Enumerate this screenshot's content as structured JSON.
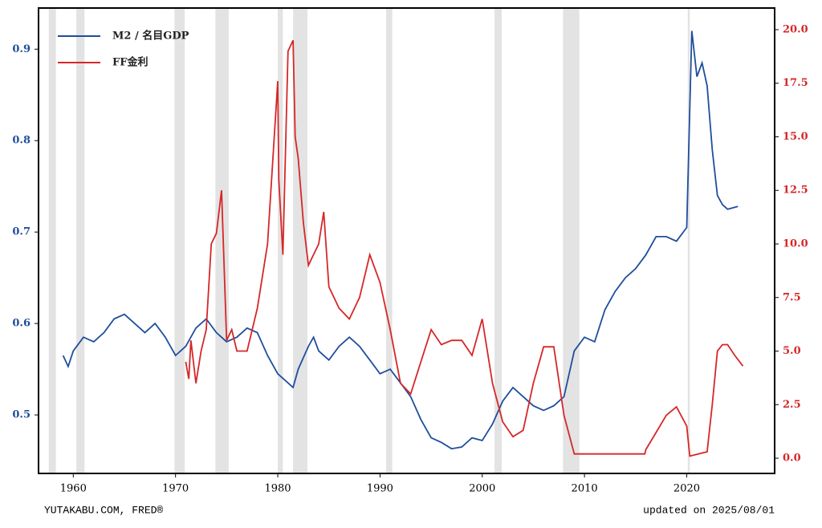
{
  "chart_data": {
    "type": "line",
    "series": [
      {
        "name": "M2 / 名目GDP",
        "color": "#1f4e9c",
        "axis": "y",
        "x": [
          1959,
          1959.5,
          1960,
          1961,
          1962,
          1963,
          1964,
          1965,
          1966,
          1967,
          1968,
          1969,
          1970,
          1971,
          1972,
          1973,
          1974,
          1975,
          1976,
          1977,
          1978,
          1979,
          1980,
          1981,
          1981.5,
          1982,
          1983,
          1983.5,
          1984,
          1985,
          1986,
          1987,
          1988,
          1989,
          1990,
          1991,
          1992,
          1993,
          1994,
          1995,
          1996,
          1997,
          1998,
          1999,
          2000,
          2001,
          2002,
          2003,
          2004,
          2005,
          2006,
          2007,
          2008,
          2009,
          2010,
          2011,
          2012,
          2013,
          2014,
          2015,
          2016,
          2017,
          2018,
          2019,
          2020,
          2020.5,
          2021,
          2021.5,
          2022,
          2022.5,
          2023,
          2023.5,
          2024,
          2025
        ],
        "values": [
          0.565,
          0.553,
          0.57,
          0.585,
          0.58,
          0.59,
          0.605,
          0.61,
          0.6,
          0.59,
          0.6,
          0.585,
          0.565,
          0.575,
          0.595,
          0.605,
          0.59,
          0.58,
          0.585,
          0.595,
          0.59,
          0.565,
          0.545,
          0.535,
          0.53,
          0.55,
          0.575,
          0.585,
          0.57,
          0.56,
          0.575,
          0.585,
          0.575,
          0.56,
          0.545,
          0.55,
          0.535,
          0.52,
          0.495,
          0.475,
          0.47,
          0.463,
          0.465,
          0.475,
          0.472,
          0.49,
          0.515,
          0.53,
          0.52,
          0.51,
          0.505,
          0.51,
          0.52,
          0.57,
          0.585,
          0.58,
          0.615,
          0.635,
          0.65,
          0.66,
          0.675,
          0.695,
          0.695,
          0.69,
          0.705,
          0.92,
          0.87,
          0.885,
          0.86,
          0.79,
          0.74,
          0.73,
          0.725,
          0.728
        ]
      },
      {
        "name": "FF金利",
        "color": "#d62728",
        "axis": "y2",
        "x": [
          1971,
          1971.3,
          1971.5,
          1972,
          1972.5,
          1973,
          1973.5,
          1974,
          1974.5,
          1975,
          1975.5,
          1976,
          1977,
          1978,
          1979,
          1980,
          1980.1,
          1980.5,
          1981,
          1981.5,
          1981.7,
          1982,
          1982.5,
          1983,
          1984,
          1984.5,
          1985,
          1986,
          1987,
          1988,
          1989,
          1990,
          1991,
          1992,
          1993,
          1994,
          1995,
          1996,
          1997,
          1998,
          1999,
          2000,
          2001,
          2002,
          2003,
          2004,
          2005,
          2006,
          2007,
          2008,
          2009,
          2015.9,
          2016,
          2017,
          2018,
          2019,
          2020,
          2020.3,
          2022,
          2022.5,
          2023,
          2023.5,
          2024,
          2024.7,
          2025.5
        ],
        "values": [
          4.5,
          3.7,
          5.5,
          3.5,
          5,
          6,
          10,
          10.5,
          12.5,
          5.5,
          6,
          5,
          5,
          7,
          10,
          17.6,
          13,
          9.5,
          19,
          19.5,
          15,
          14,
          11,
          9,
          10,
          11.5,
          8,
          7,
          6.5,
          7.5,
          9.5,
          8.2,
          6,
          3.5,
          3,
          4.5,
          6,
          5.3,
          5.5,
          5.5,
          4.8,
          6.5,
          3.5,
          1.7,
          1.0,
          1.3,
          3.5,
          5.2,
          5.2,
          2,
          0.2,
          0.2,
          0.4,
          1.2,
          2,
          2.4,
          1.5,
          0.1,
          0.3,
          2.5,
          5,
          5.3,
          5.3,
          4.8,
          4.3
        ]
      }
    ],
    "shaded_periods": [
      [
        1957.6,
        1958.3
      ],
      [
        1960.3,
        1961.1
      ],
      [
        1969.9,
        1970.9
      ],
      [
        1973.9,
        1975.2
      ],
      [
        1980.0,
        1980.5
      ],
      [
        1981.5,
        1982.9
      ],
      [
        1990.6,
        1991.2
      ],
      [
        2001.2,
        2001.9
      ],
      [
        2007.9,
        2009.5
      ],
      [
        2020.1,
        2020.3
      ]
    ],
    "xlim": [
      1956.6,
      2028.6
    ],
    "xticks": [
      1960,
      1970,
      1980,
      1990,
      2000,
      2010,
      2020
    ],
    "ylim": [
      0.436,
      0.945
    ],
    "yticks": [
      0.5,
      0.6,
      0.7,
      0.8,
      0.9
    ],
    "y2lim": [
      -0.71,
      21.01
    ],
    "y2ticks": [
      {
        "value": 0,
        "label": "0.0"
      },
      {
        "value": 2.5,
        "label": "2.5"
      },
      {
        "value": 5,
        "label": "5.0"
      },
      {
        "value": 7.5,
        "label": "7.5"
      },
      {
        "value": 10,
        "label": "10.0"
      },
      {
        "value": 12.5,
        "label": "12.5"
      },
      {
        "value": 15,
        "label": "15.0"
      },
      {
        "value": 17.5,
        "label": "17.5"
      },
      {
        "value": 20,
        "label": "20.0"
      }
    ],
    "legend": "upper left",
    "source": "YUTAKABU.COM, FRED®",
    "updated": "updated on 2025/08/01"
  }
}
